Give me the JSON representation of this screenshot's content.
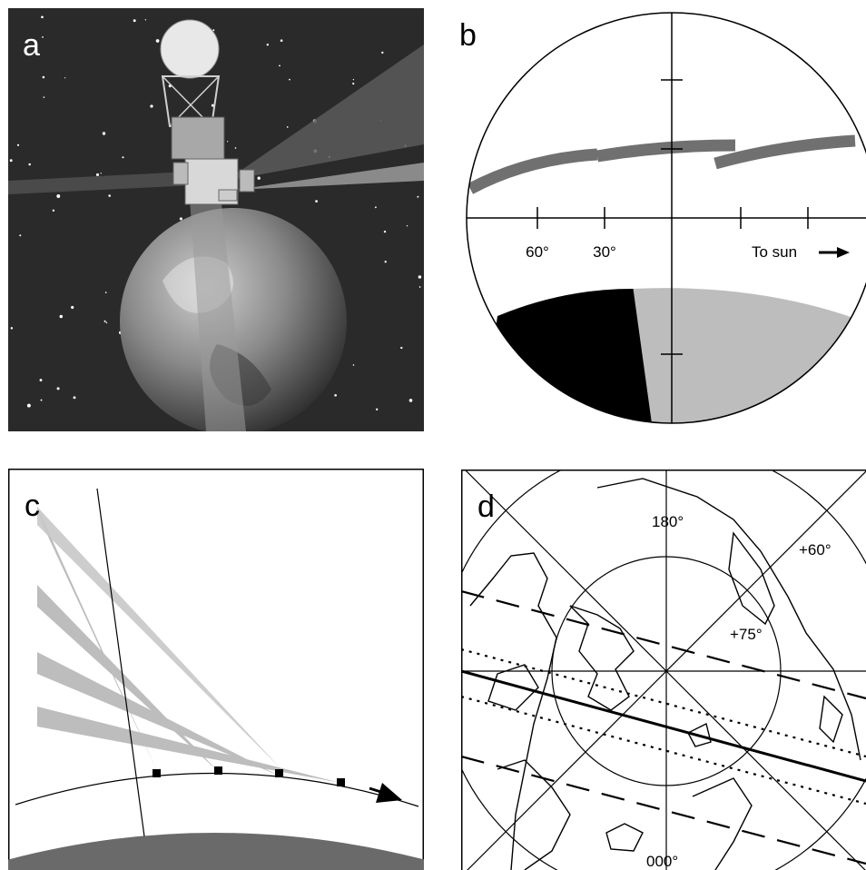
{
  "panels": {
    "a": {
      "label": "a"
    },
    "b": {
      "label": "b",
      "tick_labels": [
        "60°",
        "30°"
      ],
      "sun_label": "To sun"
    },
    "c": {
      "label": "c"
    },
    "d": {
      "label": "d",
      "lat_labels": [
        "+60°",
        "+75°"
      ],
      "lon_labels": [
        "180°",
        "000°"
      ]
    }
  },
  "colors": {
    "space": "#2a2a2a",
    "swath": "#6e6e6e",
    "earth_shadow": "#b8b8b8",
    "night": "#000000",
    "beam": "#bdbdbd",
    "earth": "#6a6a6a"
  }
}
